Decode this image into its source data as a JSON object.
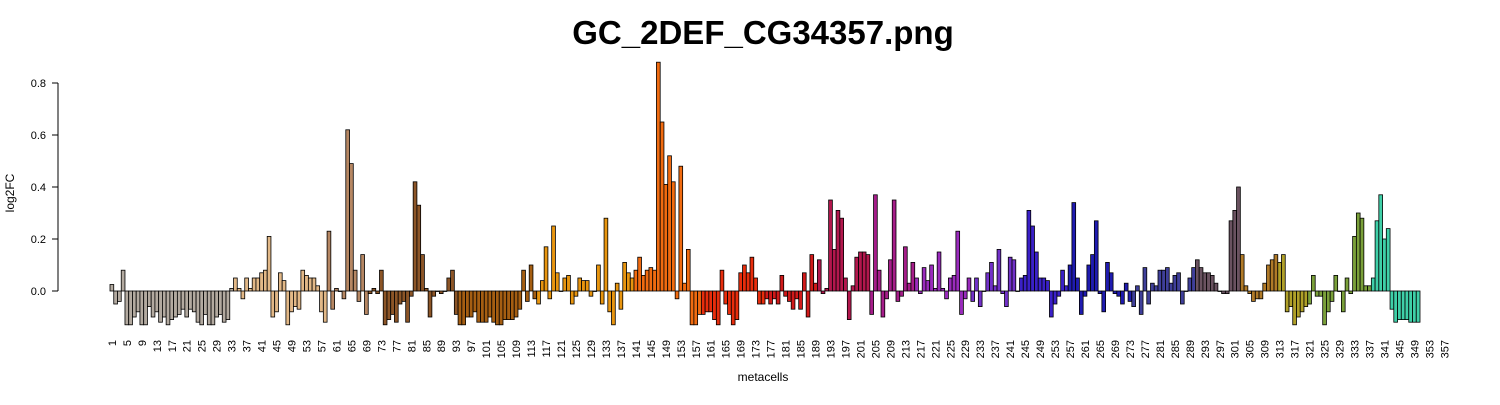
{
  "chart_data": {
    "type": "bar",
    "title": "GC_2DEF_CG34357.png",
    "xlabel": "metacells",
    "ylabel": "log2FC",
    "yticks": [
      0.0,
      0.2,
      0.4,
      0.6,
      0.8
    ],
    "ylim": [
      -0.13,
      0.9
    ],
    "x_tick_labels": [
      "1",
      "5",
      "9",
      "13",
      "17",
      "21",
      "25",
      "29",
      "33",
      "37",
      "41",
      "45",
      "49",
      "53",
      "57",
      "61",
      "65",
      "69",
      "73",
      "77",
      "81",
      "85",
      "89",
      "93",
      "97",
      "101",
      "105",
      "109",
      "113",
      "117",
      "121",
      "125",
      "129",
      "133",
      "137",
      "141",
      "145",
      "149",
      "153",
      "157",
      "161",
      "165",
      "169",
      "173",
      "177",
      "181",
      "185",
      "189",
      "193",
      "197",
      "201",
      "205",
      "209",
      "213",
      "217",
      "221",
      "225",
      "229",
      "233",
      "237",
      "241",
      "245",
      "249",
      "253",
      "257",
      "261",
      "265",
      "269",
      "273",
      "277",
      "281",
      "285",
      "289",
      "293",
      "297",
      "301",
      "305",
      "309",
      "313",
      "317",
      "321",
      "325",
      "329",
      "333",
      "337",
      "341",
      "345",
      "349",
      "353",
      "357"
    ],
    "categories_count": 358,
    "groups": [
      {
        "start": 1,
        "end": 33,
        "color": "#b3aaa0"
      },
      {
        "start": 34,
        "end": 58,
        "color": "#e2b887"
      },
      {
        "start": 59,
        "end": 69,
        "color": "#b68763"
      },
      {
        "start": 70,
        "end": 93,
        "color": "#8c5527"
      },
      {
        "start": 94,
        "end": 114,
        "color": "#a55e12"
      },
      {
        "start": 115,
        "end": 140,
        "color": "#e8950f"
      },
      {
        "start": 141,
        "end": 158,
        "color": "#f16b10"
      },
      {
        "start": 159,
        "end": 175,
        "color": "#e82d0c"
      },
      {
        "start": 176,
        "end": 189,
        "color": "#d11a1a"
      },
      {
        "start": 190,
        "end": 203,
        "color": "#b3174d"
      },
      {
        "start": 204,
        "end": 215,
        "color": "#a61d8a"
      },
      {
        "start": 216,
        "end": 230,
        "color": "#9a2bbd"
      },
      {
        "start": 231,
        "end": 242,
        "color": "#7231c9"
      },
      {
        "start": 243,
        "end": 256,
        "color": "#3a20c8"
      },
      {
        "start": 257,
        "end": 273,
        "color": "#1f1bb0"
      },
      {
        "start": 274,
        "end": 290,
        "color": "#3f3f9a"
      },
      {
        "start": 291,
        "end": 302,
        "color": "#6a5260"
      },
      {
        "start": 303,
        "end": 312,
        "color": "#b07a28"
      },
      {
        "start": 313,
        "end": 320,
        "color": "#b0a028"
      },
      {
        "start": 321,
        "end": 337,
        "color": "#7aa03a"
      },
      {
        "start": 338,
        "end": 350,
        "color": "#3fd0a8"
      },
      {
        "start": 351,
        "end": 358,
        "color": "#22e4e4"
      }
    ],
    "values": [
      0.025,
      -0.05,
      -0.04,
      0.08,
      -0.13,
      -0.13,
      -0.1,
      -0.08,
      -0.13,
      -0.13,
      -0.06,
      -0.1,
      -0.08,
      -0.12,
      -0.1,
      -0.13,
      -0.11,
      -0.1,
      -0.09,
      -0.07,
      -0.1,
      -0.07,
      -0.08,
      -0.12,
      -0.13,
      -0.09,
      -0.13,
      -0.13,
      -0.1,
      -0.09,
      -0.12,
      -0.11,
      0.01,
      0.05,
      0.01,
      -0.03,
      0.05,
      0.01,
      0.05,
      0.05,
      0.07,
      0.08,
      0.21,
      -0.1,
      -0.08,
      0.07,
      0.04,
      -0.13,
      -0.08,
      -0.06,
      -0.07,
      0.08,
      0.06,
      0.05,
      0.05,
      0.02,
      -0.08,
      -0.12,
      0.23,
      -0.07,
      0.01,
      0.0,
      -0.03,
      0.62,
      0.49,
      0.08,
      -0.04,
      0.14,
      -0.09,
      -0.01,
      0.01,
      -0.01,
      0.08,
      -0.13,
      -0.11,
      -0.09,
      -0.12,
      -0.05,
      -0.04,
      -0.12,
      -0.02,
      0.42,
      0.33,
      0.14,
      0.01,
      -0.1,
      -0.02,
      0.0,
      -0.01,
      0.0,
      0.05,
      0.08,
      -0.09,
      -0.13,
      -0.13,
      -0.1,
      -0.1,
      -0.08,
      -0.12,
      -0.12,
      -0.12,
      -0.1,
      -0.12,
      -0.13,
      -0.13,
      -0.11,
      -0.11,
      -0.11,
      -0.1,
      -0.07,
      0.08,
      -0.04,
      0.1,
      -0.03,
      -0.05,
      0.04,
      0.17,
      -0.03,
      0.25,
      0.07,
      0.0,
      0.05,
      0.06,
      -0.05,
      -0.02,
      0.05,
      0.04,
      0.04,
      -0.02,
      0.0,
      0.1,
      -0.05,
      0.28,
      -0.08,
      -0.13,
      0.03,
      -0.07,
      0.11,
      0.07,
      0.05,
      0.08,
      0.13,
      0.06,
      0.08,
      0.09,
      0.08,
      0.88,
      0.65,
      0.41,
      0.52,
      0.42,
      -0.03,
      0.48,
      0.03,
      0.16,
      -0.13,
      -0.13,
      -0.09,
      -0.09,
      -0.08,
      -0.08,
      -0.11,
      -0.13,
      0.08,
      -0.05,
      -0.09,
      -0.13,
      -0.11,
      0.07,
      0.1,
      0.07,
      0.13,
      0.05,
      -0.05,
      -0.05,
      -0.03,
      -0.05,
      -0.03,
      -0.05,
      0.06,
      -0.02,
      -0.04,
      -0.07,
      -0.03,
      -0.07,
      0.07,
      -0.1,
      0.14,
      0.03,
      0.12,
      -0.01,
      0.01,
      0.35,
      0.16,
      0.31,
      0.28,
      0.05,
      -0.11,
      0.02,
      0.13,
      0.15,
      0.15,
      0.14,
      -0.09,
      0.37,
      0.08,
      -0.1,
      -0.03,
      0.12,
      0.35,
      -0.04,
      -0.02,
      0.17,
      0.03,
      0.11,
      0.05,
      -0.01,
      0.09,
      0.04,
      0.1,
      0.01,
      0.15,
      0.01,
      -0.03,
      0.05,
      0.06,
      0.23,
      -0.09,
      -0.03,
      0.05,
      -0.04,
      0.05,
      -0.06,
      0.0,
      0.07,
      0.11,
      0.02,
      0.16,
      -0.01,
      -0.06,
      0.13,
      0.12,
      0.0,
      0.05,
      0.06,
      0.31,
      0.25,
      0.15,
      0.05,
      0.05,
      0.04,
      -0.1,
      -0.05,
      -0.02,
      0.08,
      0.02,
      0.1,
      0.34,
      0.05,
      -0.09,
      -0.02,
      0.1,
      0.14,
      0.27,
      -0.01,
      -0.08,
      0.11,
      0.07,
      -0.01,
      -0.02,
      -0.05,
      0.03,
      -0.04,
      -0.06,
      0.02,
      -0.09,
      0.09,
      -0.05,
      0.03,
      0.02,
      0.08,
      0.08,
      0.09,
      0.03,
      0.06,
      0.07,
      -0.05,
      0.0,
      0.05,
      0.09,
      0.12,
      0.09,
      0.07,
      0.07,
      0.06,
      0.03,
      0.0,
      -0.01,
      -0.01,
      0.27,
      0.31,
      0.4,
      0.14,
      0.02,
      -0.01,
      -0.04,
      -0.03,
      -0.03,
      0.03,
      0.1,
      0.12,
      0.14,
      0.11,
      0.14,
      -0.08,
      -0.06,
      -0.13,
      -0.1,
      -0.08,
      -0.06,
      -0.05,
      0.06,
      -0.02,
      -0.02,
      -0.13,
      -0.08,
      -0.04,
      0.06,
      0.0,
      -0.08,
      0.05,
      -0.01,
      0.21,
      0.3,
      0.28,
      0.02,
      0.02,
      0.05,
      0.27,
      0.37,
      0.2,
      0.24,
      -0.07,
      -0.12,
      -0.11,
      -0.11,
      -0.11,
      -0.12,
      -0.12,
      -0.12
    ]
  }
}
